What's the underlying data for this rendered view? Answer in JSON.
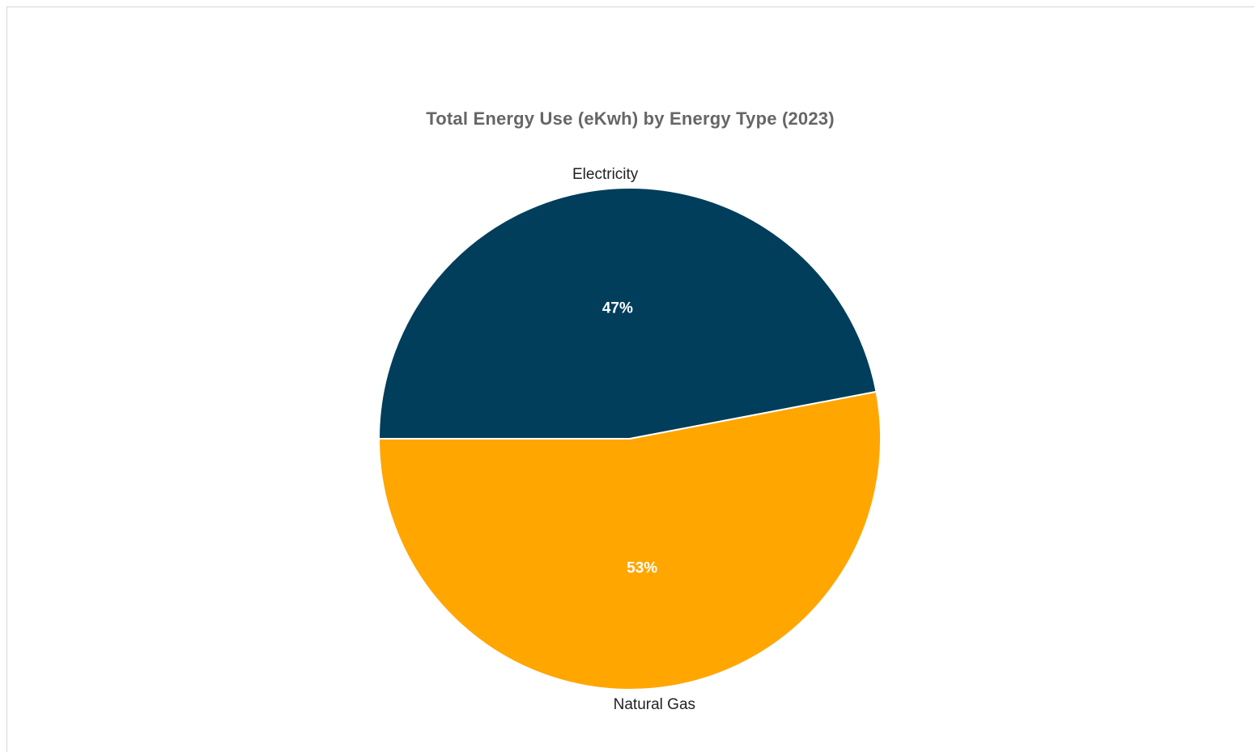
{
  "chart_data": {
    "type": "pie",
    "title": "Total Energy Use (eKwh) by Energy Type (2023)",
    "slices": [
      {
        "name": "Electricity",
        "value": 47,
        "label": "47%",
        "color": "#003e5c"
      },
      {
        "name": "Natural Gas",
        "value": 53,
        "label": "53%",
        "color": "#ffa600"
      }
    ],
    "start_direction": "left",
    "legend": "none",
    "slice_border_color": "#ffffff"
  }
}
